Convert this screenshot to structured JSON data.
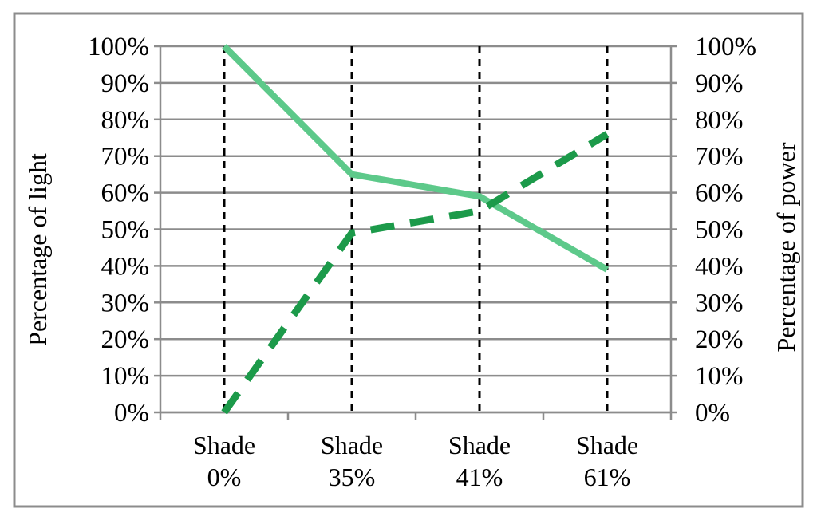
{
  "chart_data": {
    "type": "line",
    "categories": [
      "Shade\n0%",
      "Shade\n35%",
      "Shade\n41%",
      "Shade\n61%"
    ],
    "y_ticks": [
      "0%",
      "10%",
      "20%",
      "30%",
      "40%",
      "50%",
      "60%",
      "70%",
      "80%",
      "90%",
      "100%"
    ],
    "ylabel": "Percentage of light",
    "ylabel_right": "Percentage of power",
    "ylim": [
      0,
      100
    ],
    "ylim_right": [
      0,
      100
    ],
    "grid": true,
    "legend": "none",
    "series": [
      {
        "axis": "left",
        "style": "solid",
        "color": "#5dc98a",
        "values": [
          100,
          65,
          59,
          39
        ]
      },
      {
        "axis": "right",
        "style": "dashed",
        "color": "#1c9a4a",
        "values": [
          0,
          49,
          55,
          76
        ]
      }
    ],
    "vertical_markers": {
      "style": "dashed",
      "color": "#000000",
      "at_categories": [
        0,
        1,
        2,
        3
      ]
    }
  }
}
